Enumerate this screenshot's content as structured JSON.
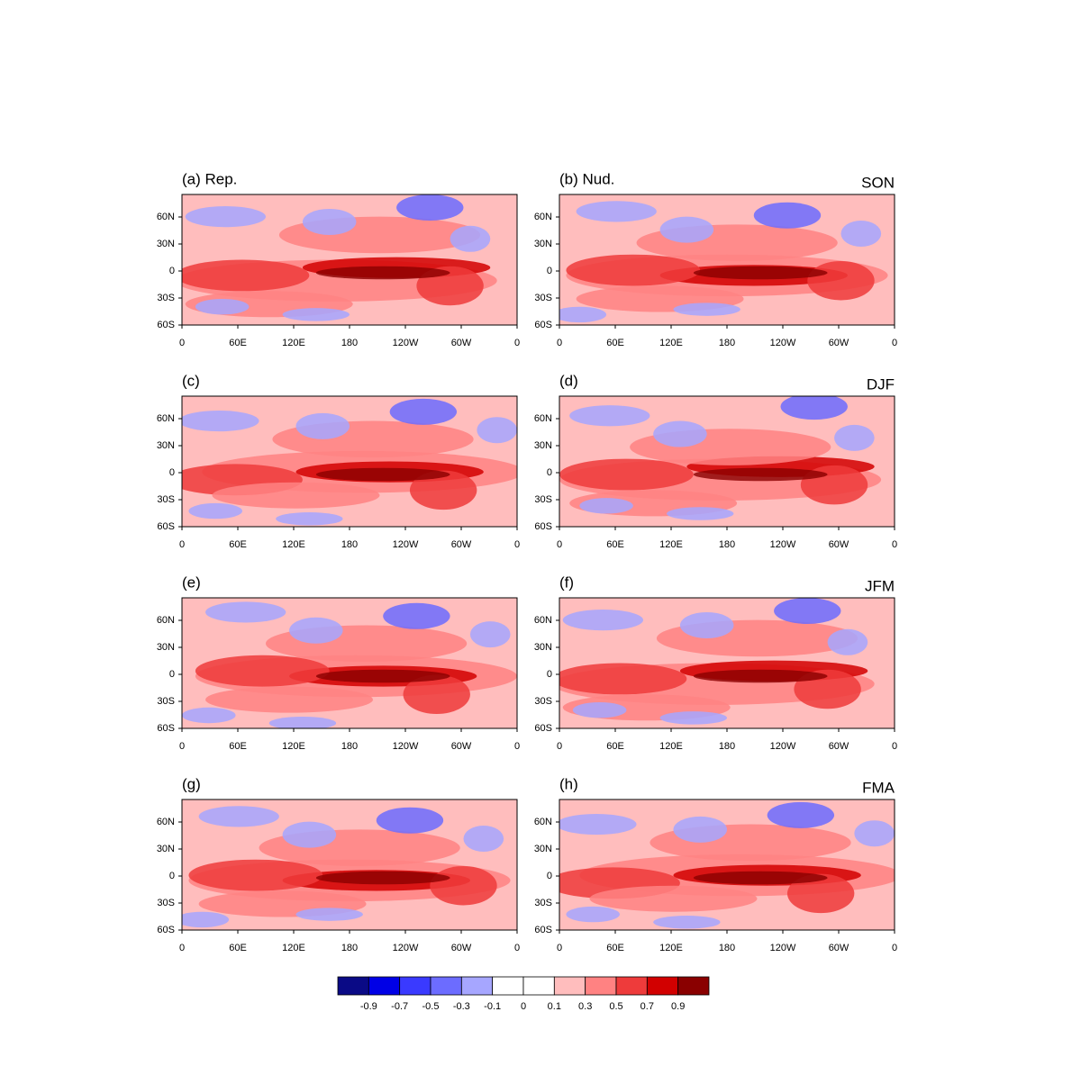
{
  "figure": {
    "panels": [
      {
        "label": "(a) Rep."
      },
      {
        "label": "(b) Nud.",
        "season": "SON"
      },
      {
        "label": "(c)"
      },
      {
        "label": "(d)",
        "season": "DJF"
      },
      {
        "label": "(e)"
      },
      {
        "label": "(f)",
        "season": "JFM"
      },
      {
        "label": "(g)"
      },
      {
        "label": "(h)",
        "season": "FMA"
      }
    ],
    "map": {
      "xlim": [
        0,
        360
      ],
      "ylim": [
        -60,
        85
      ],
      "xticks": [
        0,
        {
          "value": 60,
          "label": "60E"
        },
        {
          "value": 120,
          "label": "120E"
        },
        180,
        {
          "value": 240,
          "label": "120W"
        },
        {
          "value": 300,
          "label": "60W"
        },
        {
          "value": 360,
          "label": "0"
        }
      ],
      "yticks": [
        {
          "value": 60,
          "label": "60N"
        },
        {
          "value": 30,
          "label": "30N"
        },
        0,
        {
          "value": -30,
          "label": "30S"
        },
        {
          "value": -60,
          "label": "60S"
        }
      ]
    },
    "colorbar": {
      "colors": [
        "#0a0a86",
        "#0000e6",
        "#3a3aff",
        "#6c6cff",
        "#a6a6ff",
        "#ffffff",
        "#ffffff",
        "#ffbdbd",
        "#ff8282",
        "#ee3b3b",
        "#d20000",
        "#8a0000"
      ],
      "ticks": [
        -0.9,
        -0.7,
        -0.5,
        -0.3,
        -0.1,
        0,
        0.1,
        0.3,
        0.5,
        0.7,
        0.9
      ]
    }
  }
}
